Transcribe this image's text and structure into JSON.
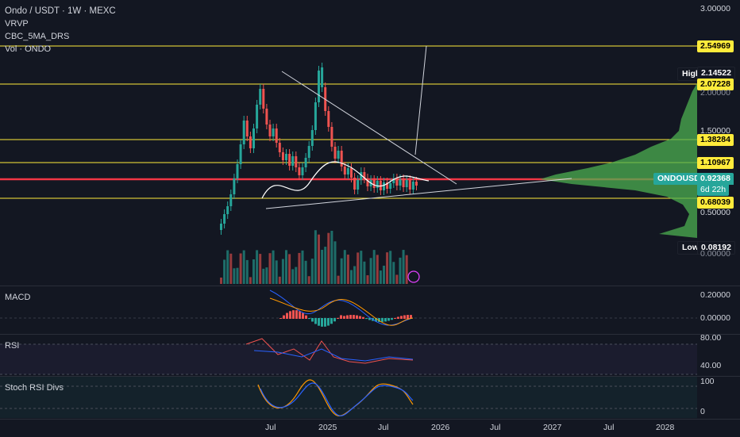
{
  "legend": {
    "title": "Ondo / USDT · 1W · MEXC",
    "indicators": [
      "VRVP",
      "CBC_5MA_DRS",
      "Vol · ONDO"
    ]
  },
  "price_axis": {
    "ticks": [
      "3.00000",
      "2.00000",
      "1.50000",
      "0.50000",
      "0.00000"
    ],
    "tags": {
      "resistance_1": "2.54969",
      "high_value": "2.14522",
      "resistance_2": "2.07228",
      "resistance_3": "1.38284",
      "resistance_4": "1.10967",
      "current_price": "0.92368",
      "countdown": "6d 22h",
      "support_1": "0.68039",
      "low_value": "0.08192"
    },
    "high_label": "High",
    "low_label": "Low",
    "symbol_label": "ONDOUSDT"
  },
  "panes": {
    "macd": {
      "title": "MACD",
      "ticks": [
        "0.20000",
        "0.00000"
      ]
    },
    "rsi": {
      "title": "RSI",
      "ticks": [
        "80.00",
        "40.00"
      ]
    },
    "stoch": {
      "title": "Stoch RSI Divs",
      "ticks": [
        "100",
        "0"
      ]
    }
  },
  "time_axis": [
    "Jul",
    "2025",
    "Jul",
    "2026",
    "Jul",
    "2027",
    "Jul",
    "2028"
  ],
  "colors": {
    "background": "#131722",
    "up": "#26a69a",
    "down": "#ef5350",
    "level_line": "#ffeb3b",
    "key_level": "#f23645",
    "vrvp": "#4caf50"
  }
}
